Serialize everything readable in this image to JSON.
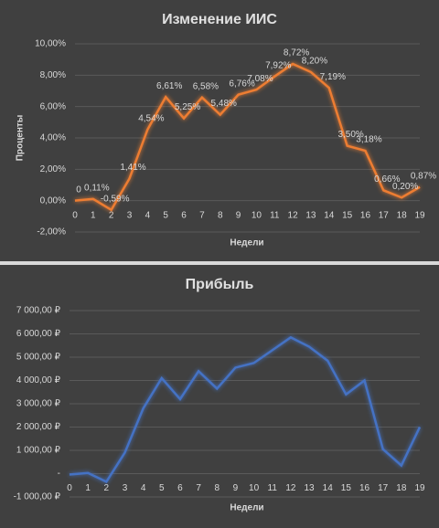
{
  "chart_data": [
    {
      "type": "line",
      "title": "Изменение ИИС",
      "y_label": "Проценты",
      "x_label": "Недели",
      "categories": [
        0,
        1,
        2,
        3,
        4,
        5,
        6,
        7,
        8,
        9,
        10,
        11,
        12,
        13,
        14,
        15,
        16,
        17,
        18,
        19
      ],
      "values": [
        0,
        0.11,
        -0.59,
        1.41,
        4.54,
        6.61,
        5.25,
        6.58,
        5.48,
        6.76,
        7.08,
        7.92,
        8.72,
        8.2,
        7.19,
        3.5,
        3.18,
        0.66,
        0.2,
        0.87
      ],
      "value_labels": [
        "0",
        "0,11%",
        "-0,59%",
        "1,41%",
        "4,54%",
        "6,61%",
        "5,25%",
        "6,58%",
        "5,48%",
        "6,76%",
        "7,08%",
        "7,92%",
        "8,72%",
        "8,20%",
        "7,19%",
        "3,50%",
        "3,18%",
        "0,66%",
        "0,20%",
        "0,87%"
      ],
      "color": "#ed7d31",
      "ylim": [
        -2,
        10
      ],
      "yticks": [
        {
          "value": -2,
          "label": "-2,00%"
        },
        {
          "value": 0,
          "label": "0,00%"
        },
        {
          "value": 2,
          "label": "2,00%"
        },
        {
          "value": 4,
          "label": "4,00%"
        },
        {
          "value": 6,
          "label": "6,00%"
        },
        {
          "value": 8,
          "label": "8,00%"
        },
        {
          "value": 10,
          "label": "10,00%"
        }
      ],
      "grid": true
    },
    {
      "type": "line",
      "title": "Прибыль",
      "x_label": "Недели",
      "categories": [
        0,
        1,
        2,
        3,
        4,
        5,
        6,
        7,
        8,
        9,
        10,
        11,
        12,
        13,
        14,
        15,
        16,
        17,
        18,
        19
      ],
      "values": [
        -40,
        30,
        -350,
        900,
        2800,
        4100,
        3200,
        4400,
        3650,
        4550,
        4750,
        5300,
        5850,
        5450,
        4850,
        3400,
        4000,
        1050,
        350,
        2000
      ],
      "color": "#4472c4",
      "ylim": [
        -1000,
        7000
      ],
      "yticks": [
        {
          "value": -1000,
          "label": "-1 000,00 ₽"
        },
        {
          "value": 0,
          "label": "-"
        },
        {
          "value": 1000,
          "label": "1 000,00 ₽"
        },
        {
          "value": 2000,
          "label": "2 000,00 ₽"
        },
        {
          "value": 3000,
          "label": "3 000,00 ₽"
        },
        {
          "value": 4000,
          "label": "4 000,00 ₽"
        },
        {
          "value": 5000,
          "label": "5 000,00 ₽"
        },
        {
          "value": 6000,
          "label": "6 000,00 ₽"
        },
        {
          "value": 7000,
          "label": "7 000,00 ₽"
        }
      ],
      "grid": true
    }
  ]
}
